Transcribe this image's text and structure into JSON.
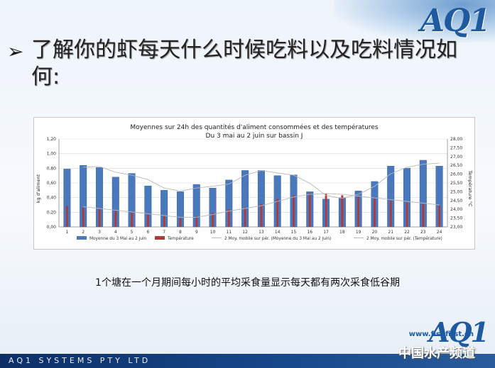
{
  "header": {
    "bullet": "➢",
    "title": "了解你的虾每天什么时候吃料以及吃料情况如何:",
    "logo": "AQ1"
  },
  "caption": "1个塘在一个月期间每小时的平均采食量显示每天都有两次采食低谷期",
  "footer": {
    "company": "AQ1 SYSTEMS PTY LTD",
    "watermark": "中国水产频道",
    "watermark_url": "www.fishfirst.cn"
  },
  "colors": {
    "feed_bar": "#4a78bd",
    "temp_bar": "#b03a3a",
    "trend_line": "#b8b8b8",
    "footer": "#17498c"
  },
  "chart_data": {
    "type": "bar",
    "title": "Moyennes sur 24h  des  quantités  d'aliment  consommées et des températures",
    "subtitle": "Du 3 mai au 2 juin sur bassin J",
    "ylabel": "kg d'aliment",
    "y2label": "Température °C",
    "categories": [
      "1",
      "2",
      "3",
      "4",
      "5",
      "6",
      "7",
      "8",
      "9",
      "10",
      "11",
      "12",
      "13",
      "14",
      "15",
      "16",
      "17",
      "18",
      "19",
      "20",
      "21",
      "22",
      "23",
      "24"
    ],
    "ylim": [
      0,
      1.2
    ],
    "y2lim": [
      23.0,
      28.0
    ],
    "yticks": [
      "0,00",
      "0,20",
      "0,40",
      "0,60",
      "0,80",
      "1,00",
      "1,20"
    ],
    "y2ticks": [
      "23,00",
      "23,50",
      "24,00",
      "24,50",
      "25,00",
      "25,50",
      "26,00",
      "26,50",
      "27,00",
      "27,50",
      "28,00"
    ],
    "series": [
      {
        "name": "Moyenne du 3 Mai au 2 juin",
        "axis": "left",
        "values": [
          0.79,
          0.84,
          0.81,
          0.68,
          0.73,
          0.56,
          0.5,
          0.48,
          0.58,
          0.53,
          0.64,
          0.77,
          0.77,
          0.7,
          0.71,
          0.48,
          0.38,
          0.4,
          0.49,
          0.62,
          0.83,
          0.8,
          0.91,
          0.83
        ]
      },
      {
        "name": "Température",
        "axis": "right",
        "values": [
          24.2,
          24.1,
          24.0,
          23.9,
          23.8,
          23.7,
          23.6,
          23.5,
          23.6,
          23.8,
          24.0,
          24.1,
          24.3,
          24.6,
          24.8,
          24.9,
          24.9,
          24.8,
          24.7,
          24.6,
          24.5,
          24.4,
          24.3,
          24.2
        ]
      }
    ],
    "legend": [
      "Moyenne du 3 Mai au 2 juin",
      "Température",
      "2 Moy. mobile sur pér. (Moyenne du 3 Mai au 2 juin)",
      "2 Moy. mobile sur pér. (Température)"
    ],
    "legend_position": "bottom"
  }
}
